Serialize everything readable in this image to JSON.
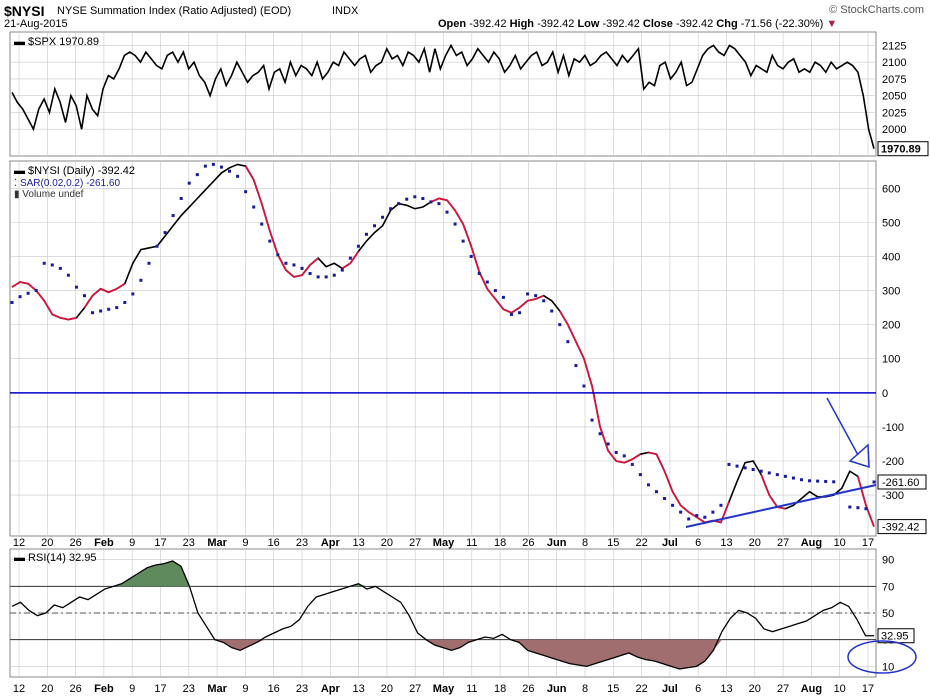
{
  "header": {
    "symbol": "$NYSI",
    "title": "NYSE Summation Index (Ratio Adjusted) (EOD)",
    "exchange": "INDX",
    "date": "21-Aug-2015",
    "brand": "© StockCharts.com",
    "quote": {
      "open_label": "Open",
      "open": "-392.42",
      "high_label": "High",
      "high": "-392.42",
      "low_label": "Low",
      "low": "-392.42",
      "close_label": "Close",
      "close": "-392.42",
      "chg_label": "Chg",
      "chg": "-71.56 (-22.30%)"
    }
  },
  "colors": {
    "price": "#000000",
    "nysi_down": "#d4143c",
    "sar": "#1a1aa0",
    "zero_line": "#0000cc",
    "annotation": "#2233cc",
    "rsi_overbought_fill": "#5e8a5e",
    "rsi_oversold_fill": "#a06e6e",
    "grid": "#c8c8c8"
  },
  "x_axis": {
    "ticks": [
      {
        "label": "12",
        "bold": false
      },
      {
        "label": "20",
        "bold": false
      },
      {
        "label": "26",
        "bold": false
      },
      {
        "label": "Feb",
        "bold": true
      },
      {
        "label": "9",
        "bold": false
      },
      {
        "label": "17",
        "bold": false
      },
      {
        "label": "23",
        "bold": false
      },
      {
        "label": "Mar",
        "bold": true
      },
      {
        "label": "9",
        "bold": false
      },
      {
        "label": "16",
        "bold": false
      },
      {
        "label": "23",
        "bold": false
      },
      {
        "label": "Apr",
        "bold": true
      },
      {
        "label": "13",
        "bold": false
      },
      {
        "label": "20",
        "bold": false
      },
      {
        "label": "27",
        "bold": false
      },
      {
        "label": "May",
        "bold": true
      },
      {
        "label": "11",
        "bold": false
      },
      {
        "label": "18",
        "bold": false
      },
      {
        "label": "26",
        "bold": false
      },
      {
        "label": "Jun",
        "bold": true
      },
      {
        "label": "8",
        "bold": false
      },
      {
        "label": "15",
        "bold": false
      },
      {
        "label": "22",
        "bold": false
      },
      {
        "label": "Jul",
        "bold": true
      },
      {
        "label": "6",
        "bold": false
      },
      {
        "label": "13",
        "bold": false
      },
      {
        "label": "20",
        "bold": false
      },
      {
        "label": "27",
        "bold": false
      },
      {
        "label": "Aug",
        "bold": true
      },
      {
        "label": "10",
        "bold": false
      },
      {
        "label": "17",
        "bold": false
      }
    ]
  },
  "chart_data": [
    {
      "type": "line",
      "title": "$SPX 1970.89",
      "series": [
        {
          "name": "$SPX",
          "values": [
            2055,
            2040,
            2030,
            2015,
            2000,
            2030,
            2045,
            2025,
            2060,
            2040,
            2010,
            2050,
            2035,
            2000,
            2050,
            2030,
            2020,
            2060,
            2080,
            2075,
            2090,
            2110,
            2115,
            2110,
            2100,
            2115,
            2105,
            2095,
            2090,
            2110,
            2115,
            2100,
            2115,
            2090,
            2100,
            2080,
            2070,
            2050,
            2075,
            2090,
            2065,
            2080,
            2100,
            2085,
            2070,
            2080,
            2085,
            2095,
            2060,
            2085,
            2090,
            2070,
            2100,
            2080,
            2095,
            2090,
            2080,
            2100,
            2075,
            2085,
            2100,
            2095,
            2115,
            2105,
            2095,
            2105,
            2110,
            2085,
            2095,
            2100,
            2120,
            2105,
            2110,
            2095,
            2115,
            2110,
            2100,
            2120,
            2085,
            2120,
            2090,
            2110,
            2125,
            2110,
            2115,
            2095,
            2105,
            2120,
            2110,
            2100,
            2115,
            2105,
            2085,
            2095,
            2110,
            2090,
            2100,
            2110,
            2115,
            2095,
            2100,
            2115,
            2085,
            2110,
            2080,
            2105,
            2100,
            2110,
            2095,
            2100,
            2110,
            2115,
            2105,
            2095,
            2110,
            2100,
            2110,
            2120,
            2060,
            2070,
            2065,
            2095,
            2100,
            2075,
            2085,
            2100,
            2065,
            2070,
            2090,
            2110,
            2120,
            2125,
            2115,
            2110,
            2125,
            2120,
            2110,
            2100,
            2080,
            2095,
            2090,
            2085,
            2110,
            2095,
            2090,
            2100,
            2105,
            2085,
            2090,
            2085,
            2100,
            2095,
            2085,
            2100,
            2090,
            2095,
            2100,
            2095,
            2085,
            2050,
            2000,
            1970.89
          ]
        }
      ],
      "y_ticks": [
        2000,
        2025,
        2050,
        2075,
        2100,
        2125
      ],
      "ylim": [
        1960,
        2145
      ],
      "last_value_label": "1970.89"
    },
    {
      "type": "line",
      "title": "$NYSI (Daily) -392.42",
      "legend": [
        {
          "name": "$NYSI (Daily) -392.42"
        },
        {
          "name": "SAR(0.02,0.2) -261.60"
        },
        {
          "name": "Volume undef"
        }
      ],
      "series": [
        {
          "name": "$NYSI",
          "values": [
            310,
            325,
            320,
            300,
            270,
            230,
            220,
            215,
            220,
            250,
            285,
            305,
            295,
            305,
            320,
            380,
            420,
            425,
            430,
            460,
            490,
            520,
            545,
            570,
            595,
            620,
            645,
            660,
            670,
            665,
            625,
            555,
            475,
            405,
            360,
            340,
            345,
            375,
            395,
            370,
            380,
            365,
            380,
            415,
            445,
            470,
            490,
            535,
            555,
            550,
            540,
            545,
            560,
            570,
            565,
            535,
            495,
            430,
            355,
            305,
            275,
            245,
            235,
            250,
            270,
            275,
            285,
            270,
            240,
            200,
            150,
            100,
            20,
            -100,
            -170,
            -200,
            -205,
            -195,
            -180,
            -175,
            -180,
            -230,
            -290,
            -330,
            -350,
            -365,
            -380,
            -375,
            -380,
            -320,
            -260,
            -205,
            -200,
            -240,
            -300,
            -335,
            -340,
            -330,
            -310,
            -290,
            -305,
            -305,
            -300,
            -280,
            -230,
            -245,
            -330,
            -392.42
          ]
        },
        {
          "name": "SAR(0.02,0.2)",
          "values": [
            265,
            282,
            292,
            300,
            380,
            375,
            365,
            345,
            310,
            285,
            235,
            240,
            245,
            250,
            265,
            290,
            330,
            380,
            430,
            470,
            520,
            570,
            615,
            640,
            665,
            670,
            662,
            650,
            635,
            590,
            545,
            495,
            445,
            405,
            380,
            375,
            365,
            350,
            340,
            340,
            345,
            360,
            395,
            430,
            465,
            490,
            515,
            540,
            555,
            568,
            575,
            570,
            560,
            555,
            530,
            495,
            445,
            400,
            350,
            325,
            300,
            280,
            230,
            235,
            290,
            285,
            270,
            240,
            200,
            150,
            80,
            20,
            -80,
            -120,
            -150,
            -175,
            -185,
            -210,
            -240,
            -270,
            -290,
            -310,
            -330,
            -350,
            -370,
            -360,
            -365,
            -350,
            -330,
            -210,
            -215,
            -220,
            -225,
            -230,
            -235,
            -240,
            -245,
            -250,
            -255,
            -258,
            -259,
            -260,
            -261,
            -262,
            -335,
            -337,
            -340,
            -261.6
          ]
        }
      ],
      "sar_segments": [
        [
          0,
          4
        ],
        [
          4,
          12
        ],
        [
          12,
          29
        ],
        [
          29,
          48
        ],
        [
          48,
          62
        ],
        [
          62,
          69
        ],
        [
          69,
          103
        ],
        [
          104,
          107
        ]
      ],
      "red_segments": [
        [
          0,
          8
        ],
        [
          9,
          14
        ],
        [
          29,
          38
        ],
        [
          41,
          43
        ],
        [
          52,
          66
        ],
        [
          68,
          78
        ],
        [
          79,
          89
        ],
        [
          93,
          96
        ],
        [
          105,
          108
        ]
      ],
      "y_ticks": [
        -300,
        -200,
        -100,
        0,
        100,
        200,
        300,
        400,
        500,
        600
      ],
      "ylim": [
        -420,
        680
      ],
      "zero_line": 0,
      "last_value_labels": [
        "-261.60",
        "-392.42"
      ]
    },
    {
      "type": "area",
      "title": "RSI(14) 32.95",
      "series": [
        {
          "name": "RSI(14)",
          "values": [
            55,
            58,
            52,
            48,
            50,
            56,
            54,
            58,
            62,
            60,
            64,
            68,
            70,
            72,
            76,
            80,
            84,
            86,
            87,
            89,
            85,
            70,
            50,
            40,
            30,
            28,
            24,
            22,
            25,
            28,
            32,
            35,
            38,
            40,
            45,
            55,
            62,
            64,
            66,
            68,
            70,
            72,
            68,
            70,
            66,
            62,
            58,
            48,
            35,
            30,
            26,
            24,
            22,
            24,
            28,
            30,
            32,
            31,
            34,
            30,
            28,
            22,
            20,
            18,
            16,
            14,
            12,
            11,
            10,
            12,
            14,
            16,
            18,
            20,
            17,
            15,
            14,
            12,
            10,
            8,
            9,
            10,
            14,
            22,
            36,
            46,
            52,
            50,
            46,
            38,
            36,
            38,
            40,
            42,
            44,
            48,
            52,
            54,
            58,
            55,
            45,
            33,
            32.95
          ]
        }
      ],
      "y_ticks": [
        10,
        30,
        50,
        70,
        90
      ],
      "ylim": [
        2,
        98
      ],
      "overbought": 70,
      "oversold": 30,
      "midline": 50,
      "last_value_label": "32.95"
    }
  ]
}
